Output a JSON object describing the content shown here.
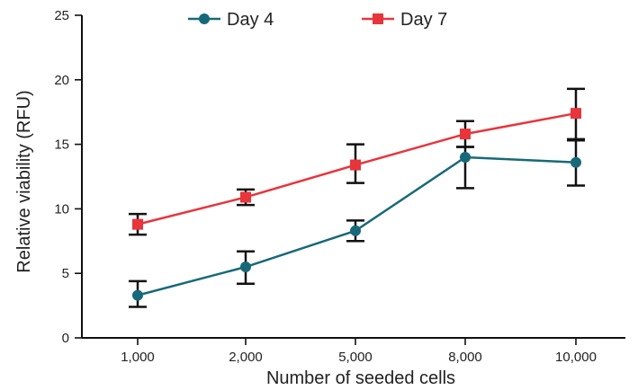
{
  "chart_data": {
    "type": "line",
    "title": "",
    "xlabel": "Number of seeded cells",
    "ylabel": "Relative viability (RFU)",
    "categories": [
      "1,000",
      "2,000",
      "5,000",
      "8,000",
      "10,000"
    ],
    "ylim": [
      0,
      25
    ],
    "yticks": [
      0,
      5,
      10,
      15,
      20,
      25
    ],
    "grid": false,
    "legend_position": "top",
    "series": [
      {
        "name": "Day 4",
        "color": "#17697a",
        "marker": "circle",
        "values": [
          3.3,
          5.5,
          8.3,
          14.0,
          13.6
        ],
        "error_low": [
          2.4,
          4.2,
          7.5,
          11.6,
          11.8
        ],
        "error_high": [
          4.4,
          6.7,
          9.1,
          14.8,
          15.4
        ]
      },
      {
        "name": "Day 7",
        "color": "#e8343b",
        "marker": "square",
        "values": [
          8.8,
          10.9,
          13.4,
          15.8,
          17.4
        ],
        "error_low": [
          8.0,
          10.3,
          12.0,
          14.8,
          15.3
        ],
        "error_high": [
          9.6,
          11.5,
          15.0,
          16.8,
          19.3
        ]
      }
    ]
  }
}
